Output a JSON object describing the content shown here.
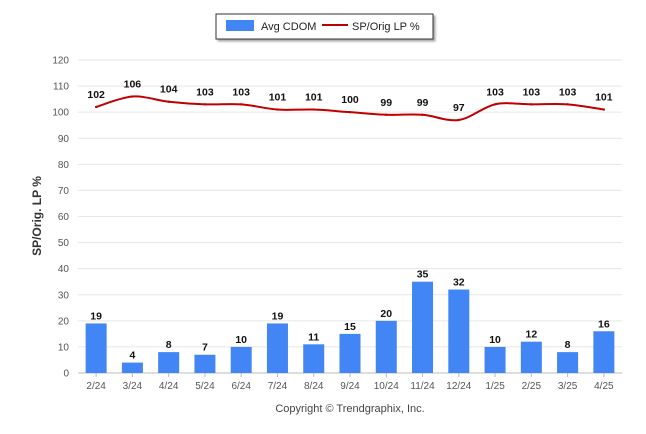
{
  "chart_data": {
    "type": "bar",
    "categories": [
      "2/24",
      "3/24",
      "4/24",
      "5/24",
      "6/24",
      "7/24",
      "8/24",
      "9/24",
      "10/24",
      "11/24",
      "12/24",
      "1/25",
      "2/25",
      "3/25",
      "4/25"
    ],
    "series": [
      {
        "name": "Avg CDOM",
        "type": "bar",
        "color": "#4285F4",
        "values": [
          19,
          4,
          8,
          7,
          10,
          19,
          11,
          15,
          20,
          35,
          32,
          10,
          12,
          8,
          16
        ]
      },
      {
        "name": "SP/Orig LP %",
        "type": "line",
        "color": "#C00000",
        "values": [
          102,
          106,
          104,
          103,
          103,
          101,
          101,
          100,
          99,
          99,
          97,
          103,
          103,
          103,
          101
        ]
      }
    ],
    "ylabel": "SP/Orig. LP %",
    "ylim": [
      0,
      120
    ],
    "yticks": [
      0,
      10,
      20,
      30,
      40,
      50,
      60,
      70,
      80,
      90,
      100,
      110,
      120
    ],
    "grid": true,
    "legend_position": "top-center",
    "credit": "Copyright © Trendgraphix, Inc."
  }
}
